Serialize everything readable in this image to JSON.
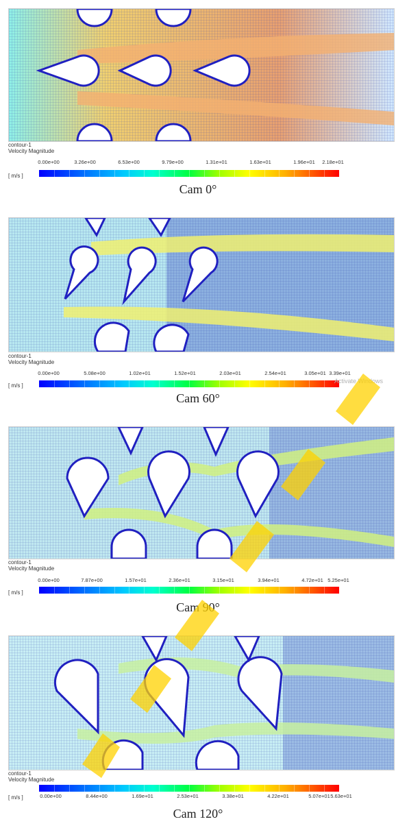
{
  "panels": [
    {
      "id": "cam-0",
      "legend_name": "contour-1",
      "quantity": "Velocity Magnitude",
      "unit": "[ m/s ]",
      "ticks": [
        "0.00e+00",
        "3.26e+00",
        "6.53e+00",
        "9.79e+00",
        "1.31e+01",
        "1.63e+01",
        "1.96e+01",
        "2.18e+01"
      ],
      "caption": "Cam 0°"
    },
    {
      "id": "cam-60",
      "legend_name": "contour-1",
      "quantity": "Velocity Magnitude",
      "unit": "[ m/s ]",
      "ticks": [
        "0.00e+00",
        "5.08e+00",
        "1.02e+01",
        "1.52e+01",
        "2.03e+01",
        "2.54e+01",
        "3.05e+01",
        "3.39e+01"
      ],
      "caption": "Cam 60°"
    },
    {
      "id": "cam-90",
      "legend_name": "contour-1",
      "quantity": "Velocity Magnitude",
      "unit": "[ m/s ]",
      "ticks": [
        "0.00e+00",
        "7.87e+00",
        "1.57e+01",
        "2.36e+01",
        "3.15e+01",
        "3.94e+01",
        "4.72e+01",
        "5.25e+01"
      ],
      "caption": "Cam 90°"
    },
    {
      "id": "cam-120",
      "legend_name": "contour-1",
      "quantity": "Velocity Magnitude",
      "unit": "[ m/s ]",
      "ticks": [
        "0.00e+00",
        "8.44e+00",
        "1.69e+01",
        "2.53e+01",
        "3.38e+01",
        "4.22e+01",
        "5.07e+01",
        "5.63e+01"
      ],
      "caption": "Cam 120°"
    }
  ],
  "overlay": {
    "activate_text": "Activate Windows"
  },
  "colors": {
    "low": "#0000ff",
    "mid": "#00ff40",
    "high": "#ff0000",
    "mesh": "#2a3aa8",
    "watermark": "#ffd200"
  }
}
